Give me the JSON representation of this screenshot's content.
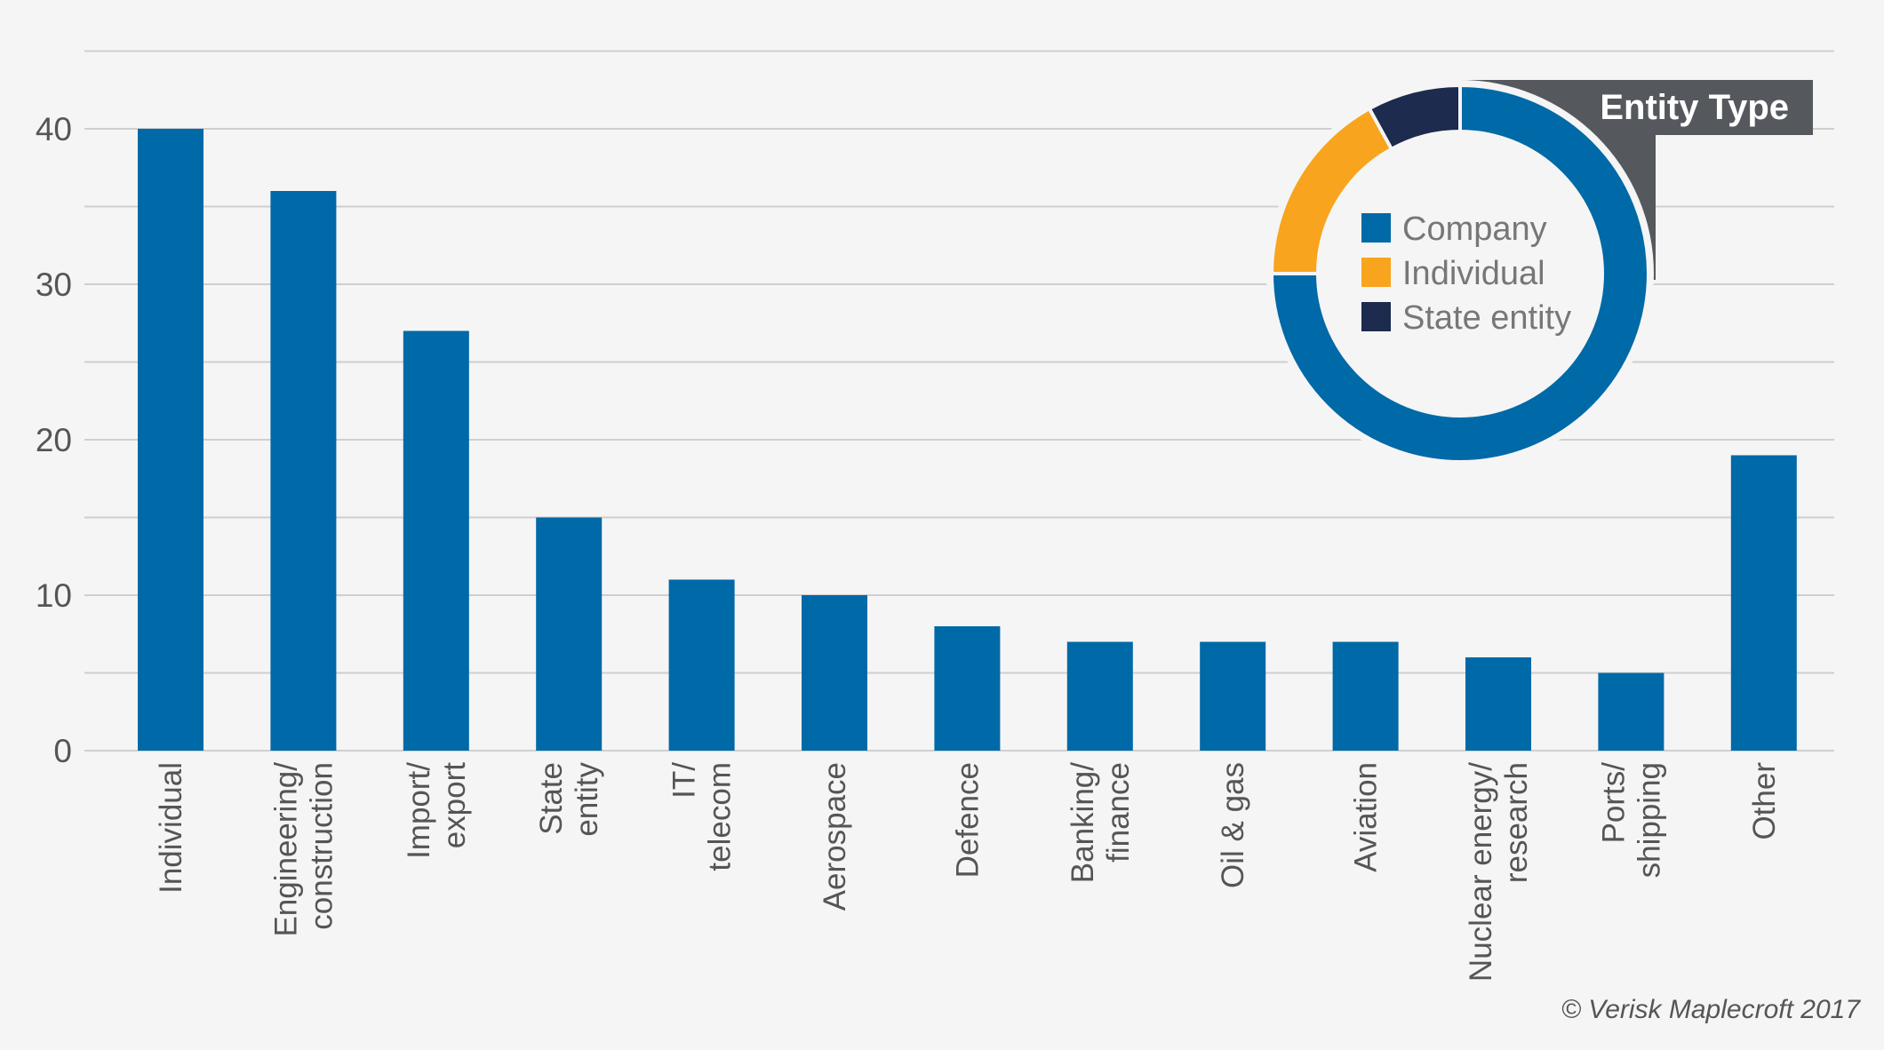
{
  "chart_data": [
    {
      "type": "bar",
      "categories": [
        [
          "Individual"
        ],
        [
          "Engineering/",
          "construction"
        ],
        [
          "Import/",
          "export"
        ],
        [
          "State",
          "entity"
        ],
        [
          "IT/",
          "telecom"
        ],
        [
          "Aerospace"
        ],
        [
          "Defence"
        ],
        [
          "Banking/",
          "finance"
        ],
        [
          "Oil & gas"
        ],
        [
          "Aviation"
        ],
        [
          "Nuclear energy/",
          "research"
        ],
        [
          "Ports/",
          "shipping"
        ],
        [
          "Other"
        ]
      ],
      "values": [
        40,
        36,
        27,
        15,
        11,
        10,
        8,
        7,
        7,
        7,
        6,
        5,
        19
      ],
      "ylim": [
        0,
        45
      ],
      "yticks": [
        0,
        10,
        20,
        30,
        40
      ],
      "grid": true,
      "color": "#0069a7"
    },
    {
      "type": "pie",
      "style": "donut",
      "title": "Entity Type",
      "labels": [
        "Company",
        "Individual",
        "State entity"
      ],
      "values": [
        75,
        17,
        8
      ],
      "colors": [
        "#0069a7",
        "#f8a41e",
        "#1c2b4e"
      ],
      "legend": "center"
    }
  ],
  "footer": {
    "copyright": "© Verisk Maplecroft 2017"
  }
}
